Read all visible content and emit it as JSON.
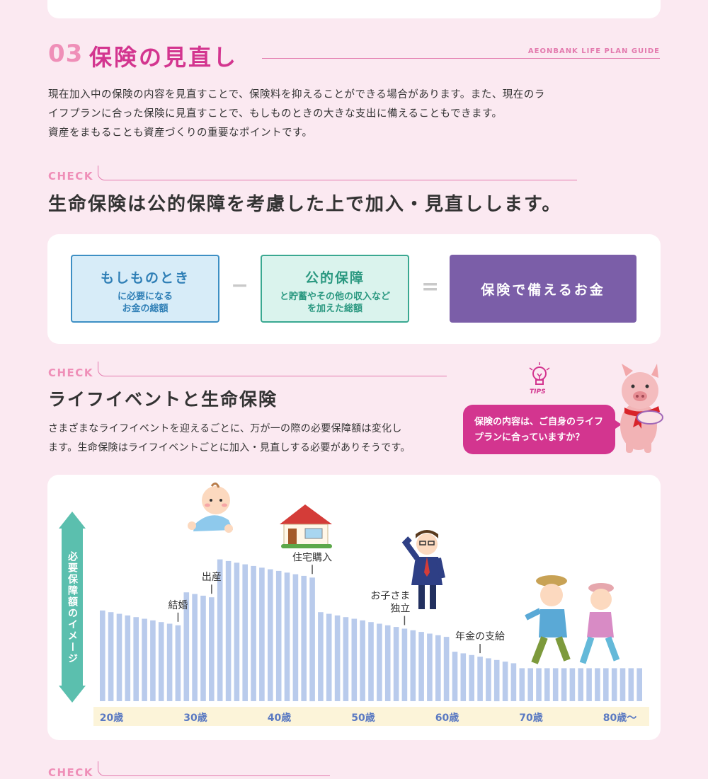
{
  "section": {
    "number": "03",
    "title": "保険の見直し",
    "brand": "AEONBANK LIFE PLAN GUIDE",
    "intro": [
      "現在加入中の保険の内容を見直すことで、保険料を抑えることができる場合があります。また、現在のラ",
      "イフプランに合った保険に見直すことで、もしものときの大きな支出に備えることもできます。",
      "資産をまもることも資産づくりの重要なポイントです。"
    ]
  },
  "check_label": "CHECK",
  "check1": {
    "heading": "生命保険は公的保障を考慮した上で加入・見直しします。",
    "formula": {
      "box1_title": "もしものとき",
      "box1_sub1": "に必要になる",
      "box1_sub2": "お金の総額",
      "minus": "−",
      "box2_title": "公的保障",
      "box2_sub1": "と貯蓄やその他の収入など",
      "box2_sub2": "を加えた総額",
      "equals": "=",
      "box3_title": "保険で備えるお金"
    }
  },
  "check2": {
    "heading": "ライフイベントと生命保険",
    "desc": [
      "さまざまなライフイベントを迎えるごとに、万が一の際の必要保障額は変化し",
      "ます。生命保険はライフイベントごとに加入・見直しする必要がありそうです。"
    ],
    "tips_label": "TIPS",
    "tips": [
      "保険の内容は、ご自身のライフ",
      "プランに合っていますか？"
    ]
  },
  "chart_data": {
    "type": "bar",
    "y_axis_label": "必要保障額のイメージ",
    "x_tick_labels": [
      "20歳",
      "30歳",
      "40歳",
      "50歳",
      "60歳",
      "70歳",
      "80歳〜"
    ],
    "start_age": 20,
    "values": [
      55,
      54,
      53,
      52,
      51,
      50,
      49,
      48,
      47,
      46,
      66,
      65,
      64,
      63,
      86,
      85,
      84,
      83,
      82,
      81,
      80,
      79,
      78,
      77,
      76,
      75,
      54,
      53,
      52,
      51,
      50,
      49,
      48,
      47,
      46,
      45,
      44,
      43,
      42,
      41,
      40,
      39,
      30,
      29,
      28,
      27,
      26,
      25,
      24,
      23,
      20,
      20,
      20,
      20,
      20,
      20,
      20,
      20,
      20,
      20,
      20,
      20,
      20,
      20,
      20
    ],
    "events": [
      {
        "label": "結婚",
        "age": 29
      },
      {
        "label": "出産",
        "age": 33
      },
      {
        "label": "住宅購入",
        "age": 45
      },
      {
        "label": "お子さま",
        "label2": "独立",
        "age": 56
      },
      {
        "label": "年金の支給",
        "age": 65
      }
    ],
    "bar_color": "#b9cbec",
    "axis_color": "#5bbfae",
    "tick_band_color": "#fcf4d9"
  },
  "check3_label": "CHECK"
}
